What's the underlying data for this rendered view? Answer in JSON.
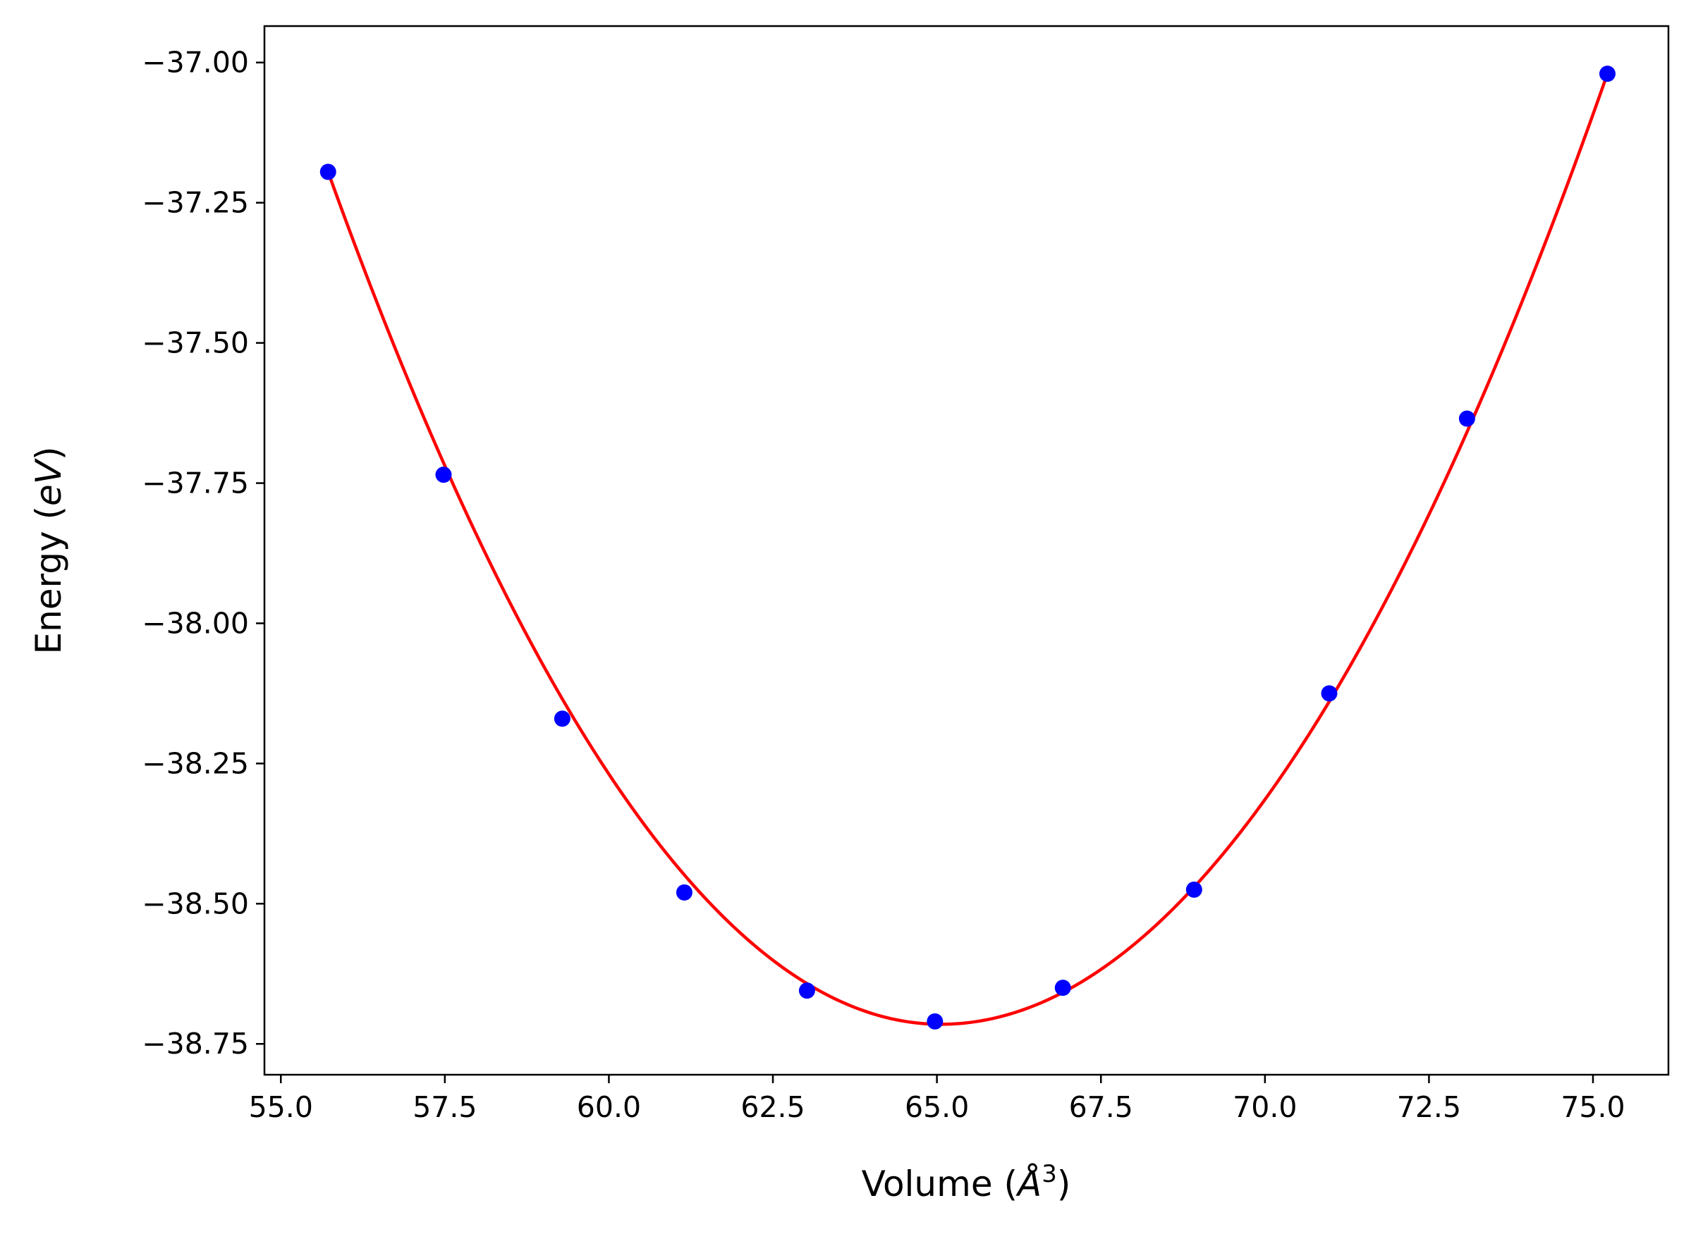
{
  "chart_data": {
    "type": "scatter",
    "title": "",
    "xlabel": {
      "prefix": "Volume (",
      "math": "Å",
      "superscript": "3",
      "suffix": ")"
    },
    "ylabel": {
      "prefix": "Energy (",
      "math": "eV",
      "suffix": ")"
    },
    "xlim": [
      54.75,
      76.15
    ],
    "ylim": [
      -38.805,
      -36.935
    ],
    "grid": false,
    "legend": "none",
    "x_ticks": [
      55.0,
      57.5,
      60.0,
      62.5,
      65.0,
      67.5,
      70.0,
      72.5,
      75.0
    ],
    "x_tick_labels": [
      "55.0",
      "57.5",
      "60.0",
      "62.5",
      "65.0",
      "67.5",
      "70.0",
      "72.5",
      "75.0"
    ],
    "y_ticks": [
      -37.0,
      -37.25,
      -37.5,
      -37.75,
      -38.0,
      -38.25,
      -38.5,
      -38.75
    ],
    "y_tick_labels": [
      "−37.00",
      "−37.25",
      "−37.50",
      "−37.75",
      "−38.00",
      "−38.25",
      "−38.50",
      "−38.75"
    ],
    "series": [
      {
        "kind": "points",
        "color": "#0000ff",
        "x": [
          55.72,
          57.48,
          59.29,
          61.15,
          63.02,
          64.97,
          66.92,
          68.92,
          70.98,
          73.08,
          75.22
        ],
        "y": [
          -37.195,
          -37.735,
          -38.17,
          -38.48,
          -38.655,
          -38.71,
          -38.65,
          -38.475,
          -38.125,
          -37.635,
          -37.02
        ]
      },
      {
        "kind": "fit-curve",
        "color": "#ff0000",
        "x_range": [
          55.72,
          75.22
        ],
        "vertex_x": 65.06,
        "vertex_y": -38.715,
        "left_endpoint_y": -37.195,
        "right_endpoint_y": -37.02
      }
    ]
  }
}
